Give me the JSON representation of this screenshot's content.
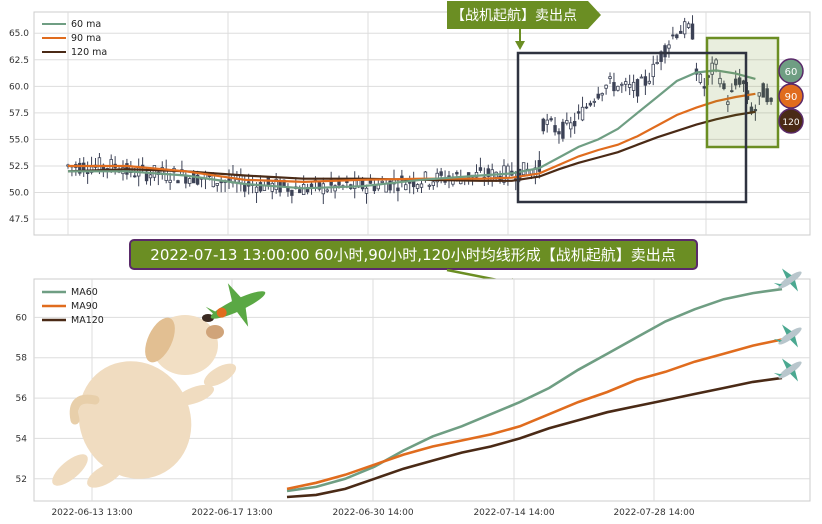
{
  "colors": {
    "ma60": "#6f9e83",
    "ma90": "#e06c1e",
    "ma120": "#4a2a16",
    "candle": "#3c4256",
    "box": "#2f3340",
    "signal": "#6b8e23",
    "banner_border": "#5a2a6a"
  },
  "top_legend": [
    "60 ma",
    "90 ma",
    "120 ma"
  ],
  "bottom_legend": [
    "MA60",
    "MA90",
    "MA120"
  ],
  "sell_tag": "【战机起航】卖出点",
  "banner": "2022-07-13 13:00:00 60小时,90小时,120小时均线形成【战机起航】卖出点",
  "end_markers": [
    "60",
    "90",
    "120"
  ],
  "chart_data": [
    {
      "type": "candlestick",
      "title": "",
      "legend": [
        "60 ma",
        "90 ma",
        "120 ma"
      ],
      "y_ticks": [
        "47.5",
        "50.0",
        "52.5",
        "55.0",
        "57.5",
        "60.0",
        "62.5",
        "65.0"
      ],
      "ylim": [
        46.0,
        67.0
      ],
      "x_range": [
        0,
        180
      ],
      "ma": {
        "60": [
          [
            0,
            52.0
          ],
          [
            15,
            52.0
          ],
          [
            30,
            51.6
          ],
          [
            45,
            50.8
          ],
          [
            60,
            50.4
          ],
          [
            75,
            50.6
          ],
          [
            90,
            51.2
          ],
          [
            105,
            51.6
          ],
          [
            113,
            51.8
          ],
          [
            120,
            52.3
          ],
          [
            125,
            53.3
          ],
          [
            130,
            54.3
          ],
          [
            135,
            55.0
          ],
          [
            140,
            56.0
          ],
          [
            145,
            57.5
          ],
          [
            150,
            59.0
          ],
          [
            155,
            60.5
          ],
          [
            160,
            61.3
          ],
          [
            165,
            61.5
          ],
          [
            170,
            61.2
          ],
          [
            175,
            60.7
          ]
        ],
        "90": [
          [
            0,
            52.5
          ],
          [
            15,
            52.5
          ],
          [
            30,
            52.0
          ],
          [
            45,
            51.2
          ],
          [
            60,
            51.0
          ],
          [
            75,
            51.2
          ],
          [
            90,
            51.3
          ],
          [
            105,
            51.3
          ],
          [
            113,
            51.4
          ],
          [
            120,
            51.8
          ],
          [
            125,
            52.6
          ],
          [
            130,
            53.4
          ],
          [
            135,
            54.0
          ],
          [
            140,
            54.5
          ],
          [
            145,
            55.3
          ],
          [
            150,
            56.3
          ],
          [
            155,
            57.3
          ],
          [
            160,
            58.0
          ],
          [
            165,
            58.6
          ],
          [
            170,
            59.0
          ],
          [
            175,
            59.3
          ]
        ],
        "120": [
          [
            0,
            52.0
          ],
          [
            15,
            52.2
          ],
          [
            30,
            52.0
          ],
          [
            45,
            51.6
          ],
          [
            60,
            51.3
          ],
          [
            75,
            51.3
          ],
          [
            90,
            51.2
          ],
          [
            105,
            51.1
          ],
          [
            113,
            51.1
          ],
          [
            120,
            51.5
          ],
          [
            125,
            52.2
          ],
          [
            130,
            52.8
          ],
          [
            135,
            53.3
          ],
          [
            140,
            53.8
          ],
          [
            145,
            54.5
          ],
          [
            150,
            55.2
          ],
          [
            155,
            55.8
          ],
          [
            160,
            56.4
          ],
          [
            165,
            56.9
          ],
          [
            170,
            57.3
          ],
          [
            175,
            57.6
          ]
        ]
      }
    },
    {
      "type": "line",
      "title": "",
      "x_ticks": [
        "2022-06-13 13:00",
        "2022-06-17 13:00",
        "2022-06-30 14:00",
        "2022-07-14 14:00",
        "2022-07-28 14:00"
      ],
      "y_ticks": [
        "52",
        "54",
        "56",
        "58",
        "60"
      ],
      "ylim": [
        50.9,
        61.9
      ],
      "series": [
        {
          "name": "MA60",
          "points": [
            [
              0,
              51.4
            ],
            [
              5,
              51.6
            ],
            [
              10,
              52.0
            ],
            [
              15,
              52.6
            ],
            [
              20,
              53.4
            ],
            [
              25,
              54.1
            ],
            [
              30,
              54.6
            ],
            [
              35,
              55.2
            ],
            [
              40,
              55.8
            ],
            [
              45,
              56.5
            ],
            [
              50,
              57.4
            ],
            [
              55,
              58.2
            ],
            [
              60,
              59.0
            ],
            [
              65,
              59.8
            ],
            [
              70,
              60.4
            ],
            [
              75,
              60.9
            ],
            [
              80,
              61.2
            ],
            [
              85,
              61.4
            ]
          ]
        },
        {
          "name": "MA90",
          "points": [
            [
              0,
              51.5
            ],
            [
              5,
              51.8
            ],
            [
              10,
              52.2
            ],
            [
              15,
              52.7
            ],
            [
              20,
              53.2
            ],
            [
              25,
              53.6
            ],
            [
              30,
              53.9
            ],
            [
              35,
              54.2
            ],
            [
              40,
              54.6
            ],
            [
              45,
              55.2
            ],
            [
              50,
              55.8
            ],
            [
              55,
              56.3
            ],
            [
              60,
              56.9
            ],
            [
              65,
              57.3
            ],
            [
              70,
              57.8
            ],
            [
              75,
              58.2
            ],
            [
              80,
              58.6
            ],
            [
              85,
              58.9
            ]
          ]
        },
        {
          "name": "MA120",
          "points": [
            [
              0,
              51.1
            ],
            [
              5,
              51.2
            ],
            [
              10,
              51.5
            ],
            [
              15,
              52.0
            ],
            [
              20,
              52.5
            ],
            [
              25,
              52.9
            ],
            [
              30,
              53.3
            ],
            [
              35,
              53.6
            ],
            [
              40,
              54.0
            ],
            [
              45,
              54.5
            ],
            [
              50,
              54.9
            ],
            [
              55,
              55.3
            ],
            [
              60,
              55.6
            ],
            [
              65,
              55.9
            ],
            [
              70,
              56.2
            ],
            [
              75,
              56.5
            ],
            [
              80,
              56.8
            ],
            [
              85,
              57.0
            ]
          ]
        }
      ]
    }
  ]
}
